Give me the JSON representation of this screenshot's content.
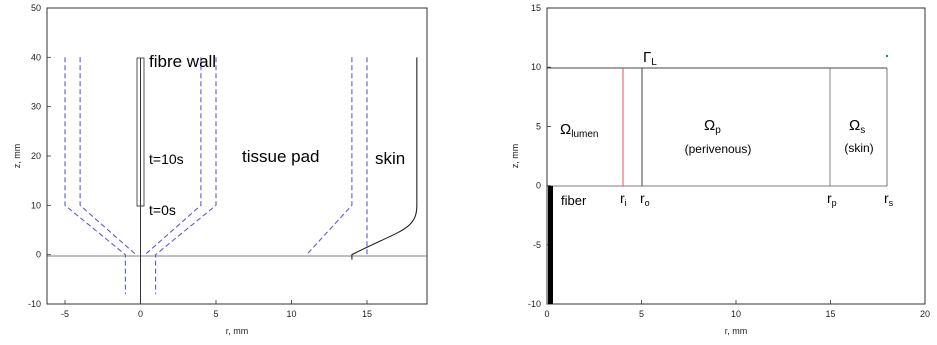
{
  "colors": {
    "dashed_contours": "#5a5ae6",
    "skin_line": "#222222",
    "inner_radius_line": "#e8505a",
    "fiber": "#000000"
  },
  "chart_data": [
    {
      "type": "line",
      "xlabel": "r, mm",
      "ylabel": "z, mm",
      "xlim": [
        -6,
        19
      ],
      "ylim": [
        -10,
        50
      ],
      "xticks": [
        -5,
        0,
        5,
        10,
        15
      ],
      "yticks": [
        -10,
        0,
        10,
        20,
        30,
        40,
        50
      ],
      "annotations": {
        "fibre_wall": "fibre wall",
        "t_late": "t=10s",
        "t_early": "t=0s",
        "tissue_pad": "tissue pad",
        "skin": "skin"
      },
      "dashed_curves": [
        [
          [
            -5,
            40
          ],
          [
            -5,
            10
          ],
          [
            -1,
            0
          ],
          [
            -1,
            -8
          ]
        ],
        [
          [
            -4,
            40
          ],
          [
            -4,
            10
          ],
          [
            -0.3,
            0
          ]
        ],
        [
          [
            5,
            40
          ],
          [
            5,
            10
          ],
          [
            1,
            0
          ],
          [
            1,
            -8
          ]
        ],
        [
          [
            4,
            40
          ],
          [
            4,
            10
          ],
          [
            0.3,
            0
          ]
        ],
        [
          [
            14,
            40
          ],
          [
            14,
            10
          ],
          [
            11,
            0
          ]
        ],
        [
          [
            15,
            40
          ],
          [
            15,
            10
          ],
          [
            15,
            0
          ]
        ]
      ],
      "skin_curve": [
        [
          18.3,
          40
        ],
        [
          18.3,
          10
        ],
        [
          17.2,
          5
        ],
        [
          14,
          0
        ],
        [
          14,
          -1
        ]
      ]
    },
    {
      "type": "diagram",
      "xlabel": "r, mm",
      "ylabel": "z, mm",
      "xlim": [
        0,
        20
      ],
      "ylim": [
        -10,
        15
      ],
      "xticks": [
        0,
        5,
        10,
        15,
        20
      ],
      "yticks": [
        -10,
        -5,
        0,
        5,
        10,
        15
      ],
      "boundaries": {
        "r_i": 4,
        "r_o": 5,
        "r_p": 15,
        "r_s": 18,
        "z_top": 10
      },
      "labels": {
        "gamma": "Γ",
        "gamma_sub": "L",
        "omega": "Ω",
        "lumen_sub": "lumen",
        "p_sub": "p",
        "perivenous": "(perivenous)",
        "s_sub": "s",
        "skin": "(skin)",
        "fiber": "fiber",
        "r": "r",
        "i_sub": "i",
        "o_sub": "o",
        "rp_sub": "p",
        "rs_sub": "s"
      }
    }
  ]
}
